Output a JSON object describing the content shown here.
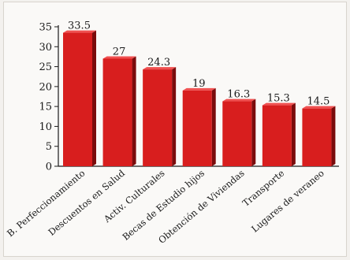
{
  "chart_data": {
    "type": "bar",
    "categories": [
      "B. Perfeccionamiento",
      "Descuentos en Salud",
      "Activ. Culturales",
      "Becas de Estudio hijos",
      "Obtención de Viviendas",
      "Transporte",
      "Lugares de veraneo"
    ],
    "values": [
      33.5,
      27,
      24.3,
      19,
      16.3,
      15.3,
      14.5
    ],
    "value_labels": [
      "33.5",
      "27",
      "24.3",
      "19",
      "16.3",
      "15.3",
      "14.5"
    ],
    "ylim": [
      0,
      35
    ],
    "yticks": [
      0,
      5,
      10,
      15,
      20,
      25,
      30,
      35
    ],
    "grid": false,
    "bar_style": "3d",
    "colors": {
      "bar_front": "#d81e1e",
      "bar_side": "#7a0c0c",
      "bar_top": "#f05050",
      "axis": "#1a1a1a"
    }
  }
}
